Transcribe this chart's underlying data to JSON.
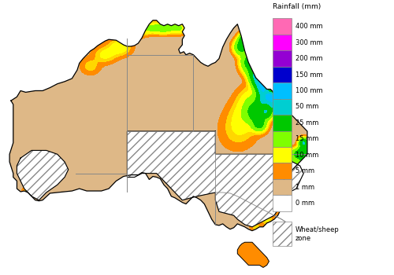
{
  "title": "",
  "legend_title": "Rainfall (mm)",
  "legend_labels": [
    "400 mm",
    "300 mm",
    "200 mm",
    "150 mm",
    "100 mm",
    "50 mm",
    "25 mm",
    "15 mm",
    "10 mm",
    "5 mm",
    "1 mm",
    "0 mm"
  ],
  "legend_colors": [
    "#FF69B4",
    "#FF00FF",
    "#9400D3",
    "#0000CD",
    "#00BFFF",
    "#00CED1",
    "#00C800",
    "#7FFF00",
    "#FFFF00",
    "#FF8C00",
    "#DEB887",
    "#FFFFFF"
  ],
  "background_color": "#FFFFFF",
  "figsize": [
    5.0,
    3.5
  ],
  "dpi": 100,
  "wheat_sheep_label": "Wheat/sheep\nzone"
}
